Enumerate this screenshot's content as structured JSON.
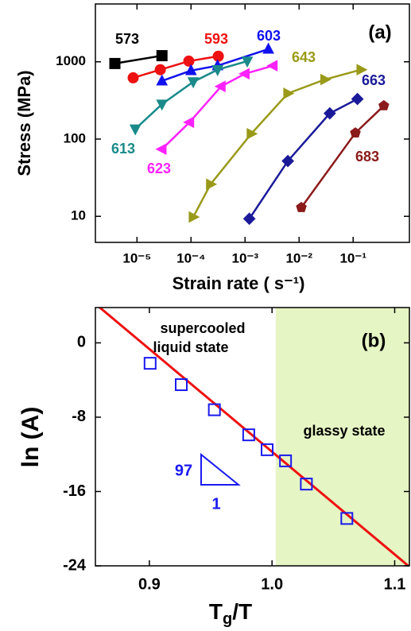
{
  "chart_data": [
    {
      "type": "scatter",
      "panel_label": "(a)",
      "x_label": "Strain rate ( s⁻¹)",
      "y_label": "Stress (MPa)",
      "xscale": "log",
      "yscale": "log",
      "xlim": [
        1.7e-06,
        1.1
      ],
      "ylim": [
        4.6,
        5600
      ],
      "xticks": [
        {
          "value": 1e-05,
          "label": "10⁻⁵"
        },
        {
          "value": 0.0001,
          "label": "10⁻⁴"
        },
        {
          "value": 0.001,
          "label": "10⁻³"
        },
        {
          "value": 0.01,
          "label": "10⁻²"
        },
        {
          "value": 0.1,
          "label": "10⁻¹"
        }
      ],
      "yticks": [
        10,
        100,
        1000
      ],
      "series": [
        {
          "name": "573",
          "color": "#000000",
          "marker": "square",
          "x": [
            3.9e-06,
            2.9e-05
          ],
          "values": [
            950,
            1200
          ]
        },
        {
          "name": "593",
          "color": "#ee1111",
          "marker": "circle",
          "x": [
            8.5e-06,
            2.7e-05,
            9.1e-05,
            0.00032
          ],
          "values": [
            620,
            790,
            1020,
            1180
          ]
        },
        {
          "name": "603",
          "color": "#1111ee",
          "marker": "triangle-up",
          "x": [
            2.9e-05,
            0.0001,
            0.00031,
            0.0027
          ],
          "values": [
            565,
            770,
            890,
            1460
          ]
        },
        {
          "name": "613",
          "color": "#1a8a8a",
          "marker": "triangle-down",
          "x": [
            9.3e-06,
            2.9e-05,
            0.00011,
            0.00031,
            0.0011
          ],
          "values": [
            135,
            283,
            550,
            790,
            1020
          ]
        },
        {
          "name": "623",
          "color": "#ff22ff",
          "marker": "triangle-left",
          "x": [
            2.9e-05,
            9.4e-05,
            0.00036,
            0.001,
            0.0033
          ],
          "values": [
            74,
            165,
            480,
            700,
            890
          ]
        },
        {
          "name": "643",
          "color": "#9a9a1a",
          "marker": "triangle-right",
          "x": [
            0.00011,
            0.00023,
            0.0013,
            0.0062,
            0.03,
            0.14
          ],
          "values": [
            9.8,
            26,
            117,
            390,
            590,
            790
          ]
        },
        {
          "name": "663",
          "color": "#1a1a99",
          "marker": "diamond",
          "x": [
            0.0012,
            0.0062,
            0.037,
            0.12
          ],
          "values": [
            9.3,
            52,
            215,
            330
          ]
        },
        {
          "name": "683",
          "color": "#8b1a1a",
          "marker": "pentagon",
          "x": [
            0.011,
            0.11,
            0.37
          ],
          "values": [
            13,
            120,
            270
          ]
        }
      ]
    },
    {
      "type": "scatter",
      "panel_label": "(b)",
      "x_label": "Tg/T",
      "y_label": "ln (A)",
      "xlim": [
        0.856,
        1.112
      ],
      "ylim": [
        -24,
        3.8
      ],
      "xticks": [
        0.9,
        {
          "value": 1,
          "label": "1.0"
        },
        1.1
      ],
      "yticks": [
        0,
        -8,
        -16,
        -24
      ],
      "shade_from": 1.003,
      "shade_color": "#e6f5c4",
      "series": [
        {
          "color": "#1a1aee",
          "marker": "open-square",
          "x": [
            0.9006,
            0.926,
            0.953,
            0.981,
            0.996,
            1.011,
            1.028,
            1.061
          ],
          "values": [
            -2.2,
            -4.5,
            -7.2,
            -9.9,
            -11.5,
            -12.7,
            -15.2,
            -18.9
          ]
        }
      ],
      "fit": {
        "color": "#ee1111",
        "x": [
          0.856,
          1.112
        ],
        "values": [
          4.2,
          -24.1
        ]
      },
      "annotations": {
        "liquid_1": "supercooled",
        "liquid_2": "liquid state",
        "glassy": "glassy state",
        "slope": "97",
        "run": "1"
      }
    }
  ]
}
